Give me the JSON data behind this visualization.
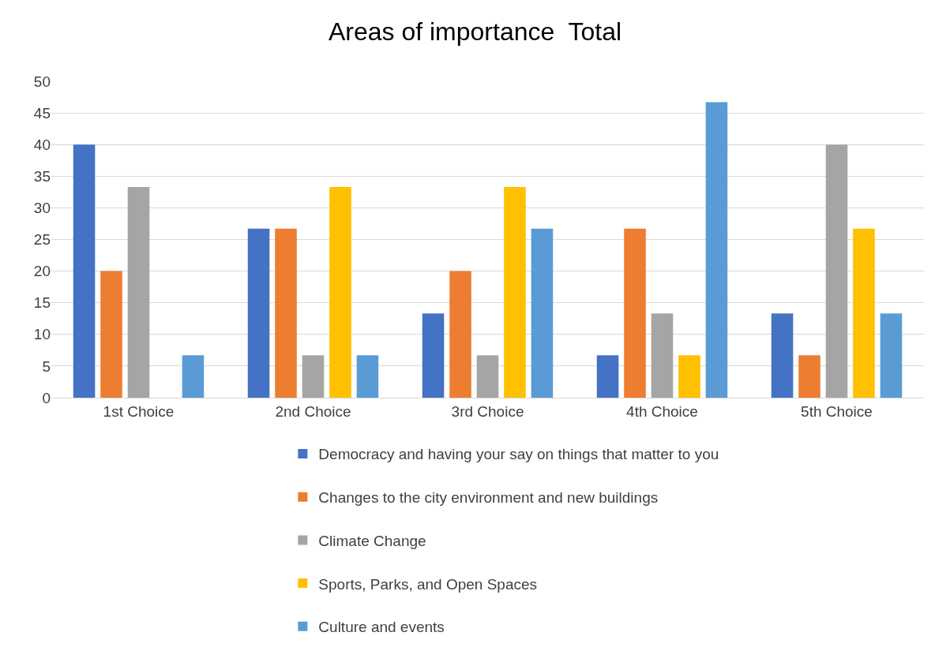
{
  "chart_data": {
    "type": "bar",
    "title": "Areas of importance  Total",
    "categories": [
      "1st Choice",
      "2nd Choice",
      "3rd Choice",
      "4th Choice",
      "5th Choice"
    ],
    "series": [
      {
        "name": "Democracy and having your say on things that matter to you",
        "color": "#4472c4",
        "values": [
          40,
          26.7,
          13.3,
          6.7,
          13.3
        ]
      },
      {
        "name": "Changes to the city environment and new buildings",
        "color": "#ed7d31",
        "values": [
          20,
          26.7,
          20,
          26.7,
          6.7
        ]
      },
      {
        "name": "Climate Change",
        "color": "#a5a5a5",
        "values": [
          33.3,
          6.7,
          6.7,
          13.3,
          40
        ]
      },
      {
        "name": "Sports, Parks, and Open Spaces",
        "color": "#ffc000",
        "values": [
          0,
          33.3,
          33.3,
          6.7,
          26.7
        ]
      },
      {
        "name": "Culture and events",
        "color": "#5b9bd5",
        "values": [
          6.7,
          6.7,
          26.7,
          46.7,
          13.3
        ]
      }
    ],
    "ylim": [
      0,
      50
    ],
    "yticks": [
      0,
      5,
      10,
      15,
      20,
      25,
      30,
      35,
      40,
      45,
      50
    ],
    "grid": "y",
    "legend": "bottom"
  }
}
